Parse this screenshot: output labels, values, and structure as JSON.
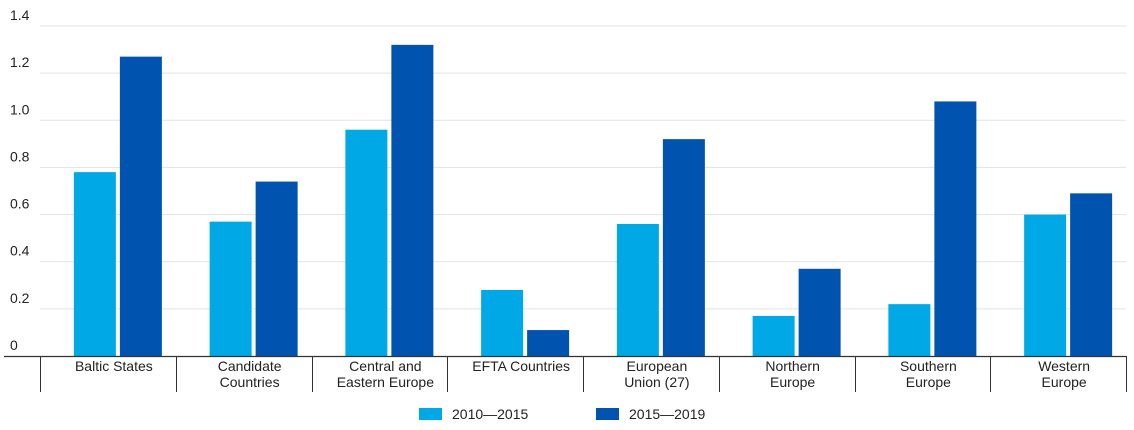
{
  "chart_data": {
    "type": "bar",
    "title": "",
    "xlabel": "",
    "ylabel": "",
    "ylim": [
      0,
      1.4
    ],
    "yticks": [
      "0",
      "0.2",
      "0.4",
      "0.6",
      "0.8",
      "1.0",
      "1.2",
      "1.4"
    ],
    "ytick_values": [
      0,
      0.2,
      0.4,
      0.6,
      0.8,
      1.0,
      1.2,
      1.4
    ],
    "grid": true,
    "legend_position": "bottom-center",
    "categories": [
      [
        "Baltic States"
      ],
      [
        "Candidate",
        "Countries"
      ],
      [
        "Central and",
        "Eastern Europe"
      ],
      [
        "EFTA Countries"
      ],
      [
        "European",
        "Union (27)"
      ],
      [
        "Northern",
        "Europe"
      ],
      [
        "Southern",
        "Europe"
      ],
      [
        "Western",
        "Europe"
      ]
    ],
    "series": [
      {
        "name": "2010—2015",
        "color": "#00a9e6",
        "values": [
          0.78,
          0.57,
          0.96,
          0.28,
          0.56,
          0.17,
          0.22,
          0.6
        ]
      },
      {
        "name": "2015—2019",
        "color": "#0054b0",
        "values": [
          1.27,
          0.74,
          1.32,
          0.11,
          0.92,
          0.37,
          1.08,
          0.69
        ]
      }
    ]
  }
}
